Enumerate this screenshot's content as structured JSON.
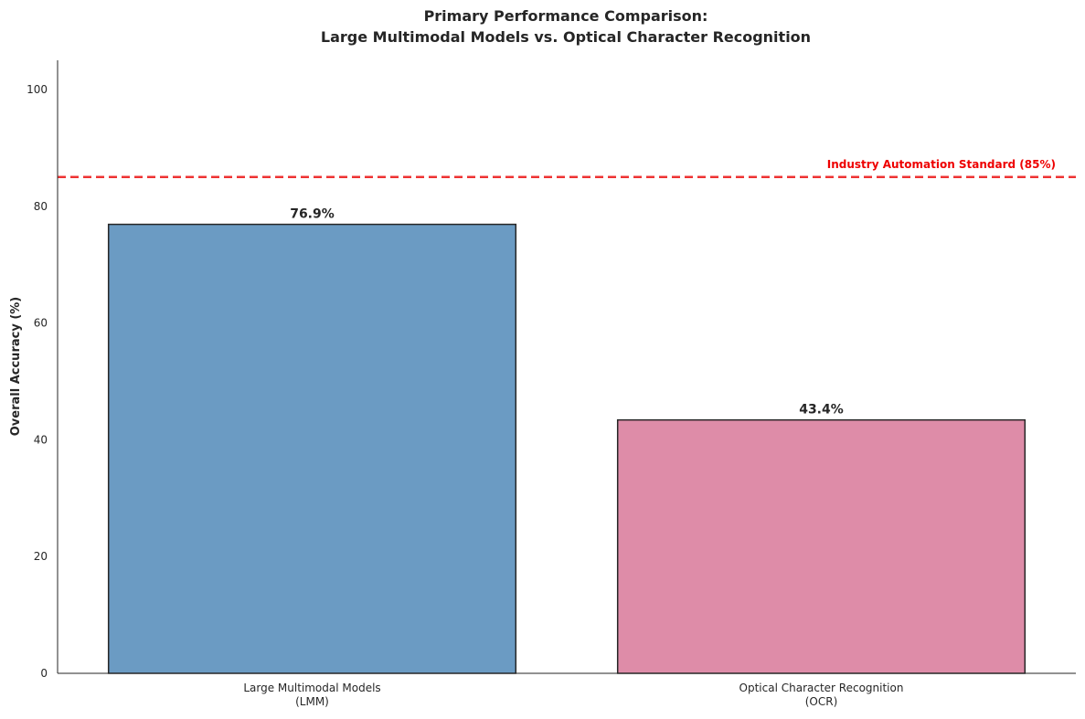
{
  "chart_data": {
    "type": "bar",
    "title": [
      "Primary Performance Comparison:",
      "Large Multimodal Models vs. Optical Character Recognition"
    ],
    "ylabel": "Overall Accuracy (%)",
    "xlabel": "",
    "categories": [
      [
        "Large Multimodal Models",
        "(LMM)"
      ],
      [
        "Optical Character Recognition",
        "(OCR)"
      ]
    ],
    "values": [
      76.9,
      43.4
    ],
    "value_labels": [
      "76.9%",
      "43.4%"
    ],
    "colors": [
      "#6b9bc3",
      "#de8ca8"
    ],
    "edge_color": "#262626",
    "ylim": [
      0,
      105
    ],
    "yticks": [
      0,
      20,
      40,
      60,
      80,
      100
    ],
    "grid": false,
    "reference_line": {
      "value": 85,
      "label": "Industry Automation Standard (85%)",
      "color": "#ee3333",
      "label_color": "#ee0000",
      "style": "dashed"
    }
  }
}
